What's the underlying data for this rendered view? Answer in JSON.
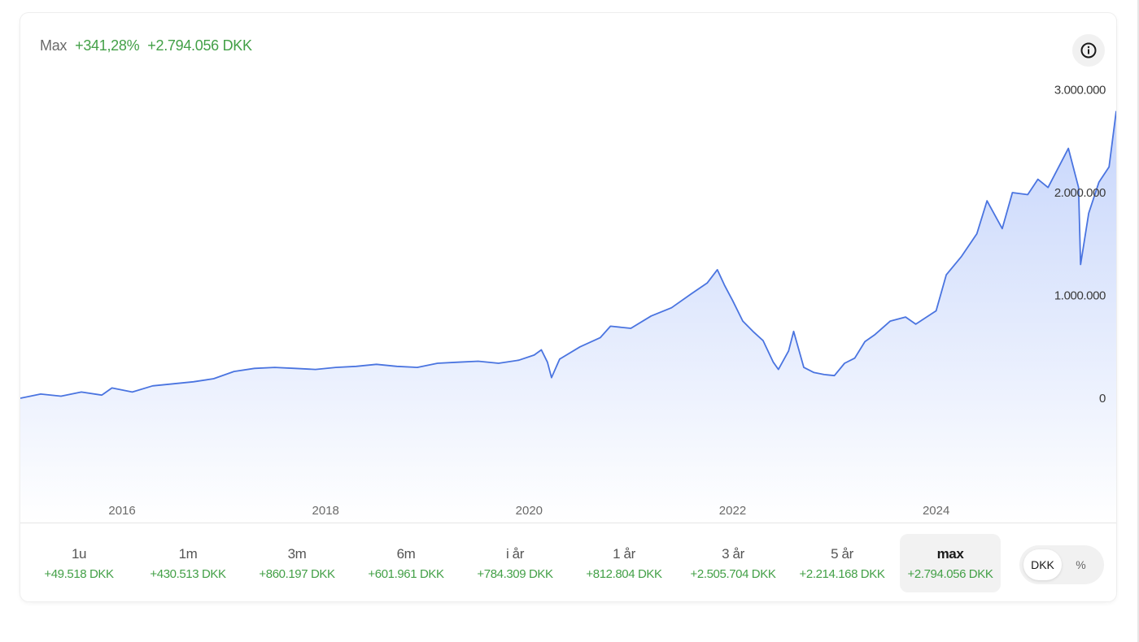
{
  "summary": {
    "period_label": "Max",
    "percent_change": "+341,28%",
    "amount_change": "+2.794.056 DKK"
  },
  "chart_data": {
    "type": "area",
    "title": "",
    "xlabel": "",
    "ylabel": "",
    "currency": "DKK",
    "y_ticks": [
      "3.000.000",
      "2.000.000",
      "1.000.000",
      "0"
    ],
    "y_tick_values": [
      3000000,
      2000000,
      1000000,
      0
    ],
    "ylim": [
      -1000000,
      3000000
    ],
    "x_ticks": [
      "2016",
      "2018",
      "2020",
      "2022",
      "2024"
    ],
    "x_tick_values": [
      2016,
      2018,
      2020,
      2022,
      2024
    ],
    "xlim": [
      2015.0,
      2025.77
    ],
    "line_color": "#4a74e0",
    "series": [
      {
        "x": [
          2015.0,
          2015.2,
          2015.4,
          2015.6,
          2015.8,
          2015.9,
          2016.1,
          2016.3,
          2016.5,
          2016.7,
          2016.9,
          2017.1,
          2017.3,
          2017.5,
          2017.7,
          2017.9,
          2018.1,
          2018.3,
          2018.5,
          2018.7,
          2018.9,
          2019.1,
          2019.3,
          2019.5,
          2019.7,
          2019.9,
          2020.05,
          2020.12,
          2020.18,
          2020.22,
          2020.3,
          2020.5,
          2020.7,
          2020.8,
          2021.0,
          2021.2,
          2021.4,
          2021.6,
          2021.75,
          2021.85,
          2021.92,
          2022.0,
          2022.1,
          2022.2,
          2022.3,
          2022.4,
          2022.45,
          2022.55,
          2022.6,
          2022.7,
          2022.8,
          2022.9,
          2023.0,
          2023.1,
          2023.2,
          2023.3,
          2023.4,
          2023.55,
          2023.7,
          2023.8,
          2024.0,
          2024.1,
          2024.25,
          2024.4,
          2024.5,
          2024.65,
          2024.75,
          2024.9,
          2025.0,
          2025.1,
          2025.3,
          2025.4,
          2025.42,
          2025.5,
          2025.6,
          2025.7,
          2025.77
        ],
        "values": [
          0,
          40000,
          20000,
          60000,
          30000,
          100000,
          60000,
          120000,
          140000,
          160000,
          190000,
          260000,
          290000,
          300000,
          290000,
          280000,
          300000,
          310000,
          330000,
          310000,
          300000,
          340000,
          350000,
          360000,
          340000,
          370000,
          420000,
          470000,
          350000,
          200000,
          380000,
          500000,
          590000,
          700000,
          680000,
          800000,
          880000,
          1020000,
          1120000,
          1250000,
          1100000,
          950000,
          750000,
          650000,
          560000,
          350000,
          280000,
          460000,
          650000,
          300000,
          250000,
          230000,
          220000,
          340000,
          390000,
          550000,
          620000,
          750000,
          790000,
          720000,
          850000,
          1200000,
          1380000,
          1600000,
          1920000,
          1650000,
          2000000,
          1980000,
          2130000,
          2050000,
          2430000,
          2050000,
          1300000,
          1800000,
          2100000,
          2250000,
          2794056
        ]
      }
    ]
  },
  "periods": [
    {
      "label": "1u",
      "value": "+49.518 DKK",
      "active": false
    },
    {
      "label": "1m",
      "value": "+430.513 DKK",
      "active": false
    },
    {
      "label": "3m",
      "value": "+860.197 DKK",
      "active": false
    },
    {
      "label": "6m",
      "value": "+601.961 DKK",
      "active": false
    },
    {
      "label": "i år",
      "value": "+784.309 DKK",
      "active": false
    },
    {
      "label": "1 år",
      "value": "+812.804 DKK",
      "active": false
    },
    {
      "label": "3 år",
      "value": "+2.505.704 DKK",
      "active": false
    },
    {
      "label": "5 år",
      "value": "+2.214.168 DKK",
      "active": false
    },
    {
      "label": "max",
      "value": "+2.794.056 DKK",
      "active": true
    }
  ],
  "unit_toggle": {
    "options": [
      "DKK",
      "%"
    ],
    "selected": "DKK"
  },
  "colors": {
    "positive": "#43a047",
    "line": "#4a74e0",
    "fill_top": "#c6d5fb",
    "fill_bottom": "#ffffff"
  },
  "icons": {
    "info": "info-icon"
  }
}
